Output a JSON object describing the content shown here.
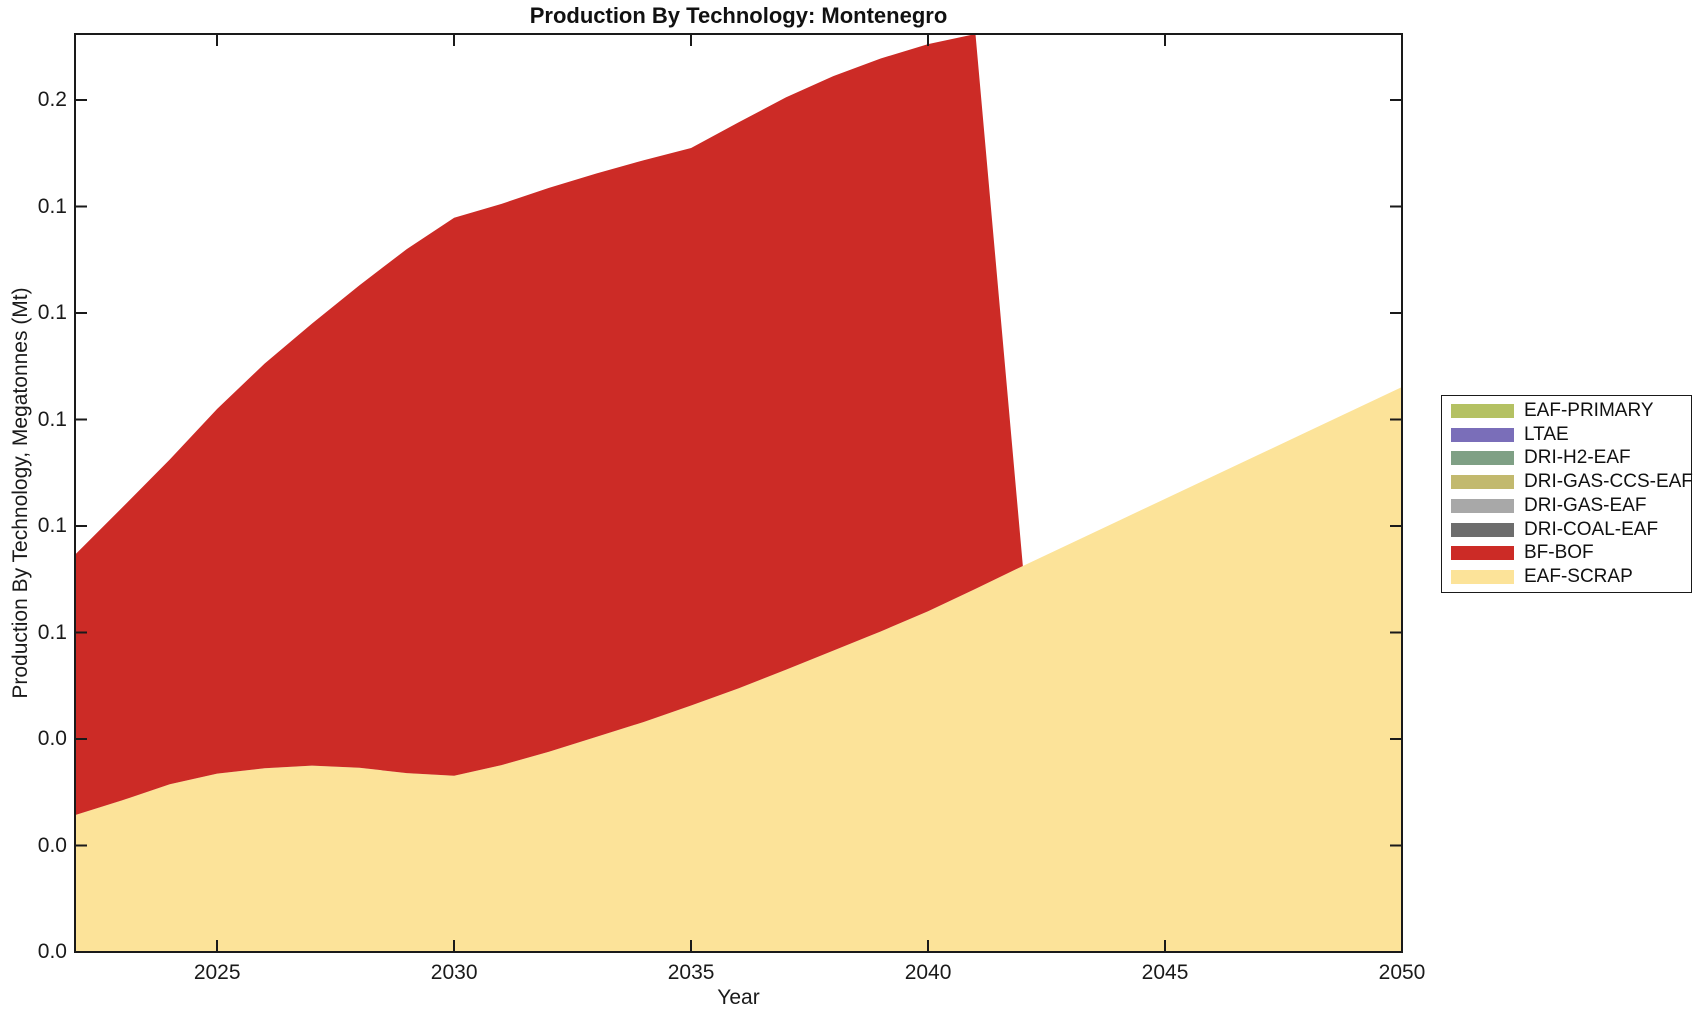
{
  "chart_data": {
    "type": "area",
    "stacked": true,
    "title": "Production By Technology: Montenegro",
    "xlabel": "Year",
    "ylabel": "Production By Technology, Megatonnes (Mt)",
    "grid": false,
    "legend_position": "right-outside",
    "xlim": [
      2022,
      2050
    ],
    "ylim": [
      0,
      0.1724
    ],
    "xticks": {
      "values": [
        2025,
        2030,
        2035,
        2040,
        2045,
        2050
      ],
      "labels": [
        "2025",
        "2030",
        "2035",
        "2040",
        "2045",
        "2050"
      ]
    },
    "yticks": {
      "values": [
        0,
        0.02,
        0.04,
        0.06,
        0.08,
        0.1,
        0.12,
        0.14,
        0.16
      ],
      "labels": [
        "0.0",
        "0.0",
        "0.0",
        "0.1",
        "0.1",
        "0.1",
        "0.1",
        "0.1",
        "0.2"
      ]
    },
    "x": [
      2022,
      2023,
      2024,
      2025,
      2026,
      2027,
      2028,
      2029,
      2030,
      2031,
      2032,
      2033,
      2034,
      2035,
      2036,
      2037,
      2038,
      2039,
      2040,
      2041,
      2042,
      2043,
      2044,
      2045,
      2046,
      2047,
      2048,
      2049,
      2050
    ],
    "series": [
      {
        "name": "EAF-SCRAP",
        "color": "#FCE399",
        "values": [
          0.0257,
          0.0285,
          0.0315,
          0.0335,
          0.0345,
          0.035,
          0.0346,
          0.0336,
          0.0331,
          0.0351,
          0.0376,
          0.0404,
          0.0432,
          0.0463,
          0.0495,
          0.053,
          0.0566,
          0.0602,
          0.064,
          0.0682,
          0.0725,
          0.0767,
          0.0809,
          0.0851,
          0.0893,
          0.0935,
          0.0977,
          0.1019,
          0.1061
        ]
      },
      {
        "name": "BF-BOF",
        "color": "#CC2B26",
        "values": [
          0.0489,
          0.055,
          0.061,
          0.0685,
          0.076,
          0.083,
          0.0906,
          0.0984,
          0.1048,
          0.1054,
          0.1059,
          0.1058,
          0.1055,
          0.1047,
          0.1063,
          0.1075,
          0.1079,
          0.1076,
          0.1065,
          0.1042,
          0,
          0,
          0,
          0,
          0,
          0,
          0,
          0,
          0
        ]
      },
      {
        "name": "DRI-COAL-EAF",
        "color": "#6D6D6D",
        "values": [
          0,
          0,
          0,
          0,
          0,
          0,
          0,
          0,
          0,
          0,
          0,
          0,
          0,
          0,
          0,
          0,
          0,
          0,
          0,
          0,
          0,
          0,
          0,
          0,
          0,
          0,
          0,
          0,
          0
        ]
      },
      {
        "name": "DRI-GAS-EAF",
        "color": "#A8A8A8",
        "values": [
          0,
          0,
          0,
          0,
          0,
          0,
          0,
          0,
          0,
          0,
          0,
          0,
          0,
          0,
          0,
          0,
          0,
          0,
          0,
          0,
          0,
          0,
          0,
          0,
          0,
          0,
          0,
          0,
          0
        ]
      },
      {
        "name": "DRI-GAS-CCS-EAF",
        "color": "#C2B96E",
        "values": [
          0,
          0,
          0,
          0,
          0,
          0,
          0,
          0,
          0,
          0,
          0,
          0,
          0,
          0,
          0,
          0,
          0,
          0,
          0,
          0,
          0,
          0,
          0,
          0,
          0,
          0,
          0,
          0,
          0
        ]
      },
      {
        "name": "DRI-H2-EAF",
        "color": "#7FA085",
        "values": [
          0,
          0,
          0,
          0,
          0,
          0,
          0,
          0,
          0,
          0,
          0,
          0,
          0,
          0,
          0,
          0,
          0,
          0,
          0,
          0,
          0,
          0,
          0,
          0,
          0,
          0,
          0,
          0,
          0
        ]
      },
      {
        "name": "LTAE",
        "color": "#7A6EB9",
        "values": [
          0,
          0,
          0,
          0,
          0,
          0,
          0,
          0,
          0,
          0,
          0,
          0,
          0,
          0,
          0,
          0,
          0,
          0,
          0,
          0,
          0,
          0,
          0,
          0,
          0,
          0,
          0,
          0,
          0
        ]
      },
      {
        "name": "EAF-PRIMARY",
        "color": "#B4C163",
        "values": [
          0,
          0,
          0,
          0,
          0,
          0,
          0,
          0,
          0,
          0,
          0,
          0,
          0,
          0,
          0,
          0,
          0,
          0,
          0,
          0,
          0,
          0,
          0,
          0,
          0,
          0,
          0,
          0,
          0
        ]
      }
    ]
  },
  "legend": {
    "items": [
      {
        "label": "EAF-PRIMARY",
        "color": "#B4C163"
      },
      {
        "label": "LTAE",
        "color": "#7A6EB9"
      },
      {
        "label": "DRI-H2-EAF",
        "color": "#7FA085"
      },
      {
        "label": "DRI-GAS-CCS-EAF",
        "color": "#C2B96E"
      },
      {
        "label": "DRI-GAS-EAF",
        "color": "#A8A8A8"
      },
      {
        "label": "DRI-COAL-EAF",
        "color": "#6D6D6D"
      },
      {
        "label": "BF-BOF",
        "color": "#CC2B26"
      },
      {
        "label": "EAF-SCRAP",
        "color": "#FCE399"
      }
    ]
  },
  "style": {
    "axis_color": "#1a1a1a",
    "background": "#ffffff"
  }
}
